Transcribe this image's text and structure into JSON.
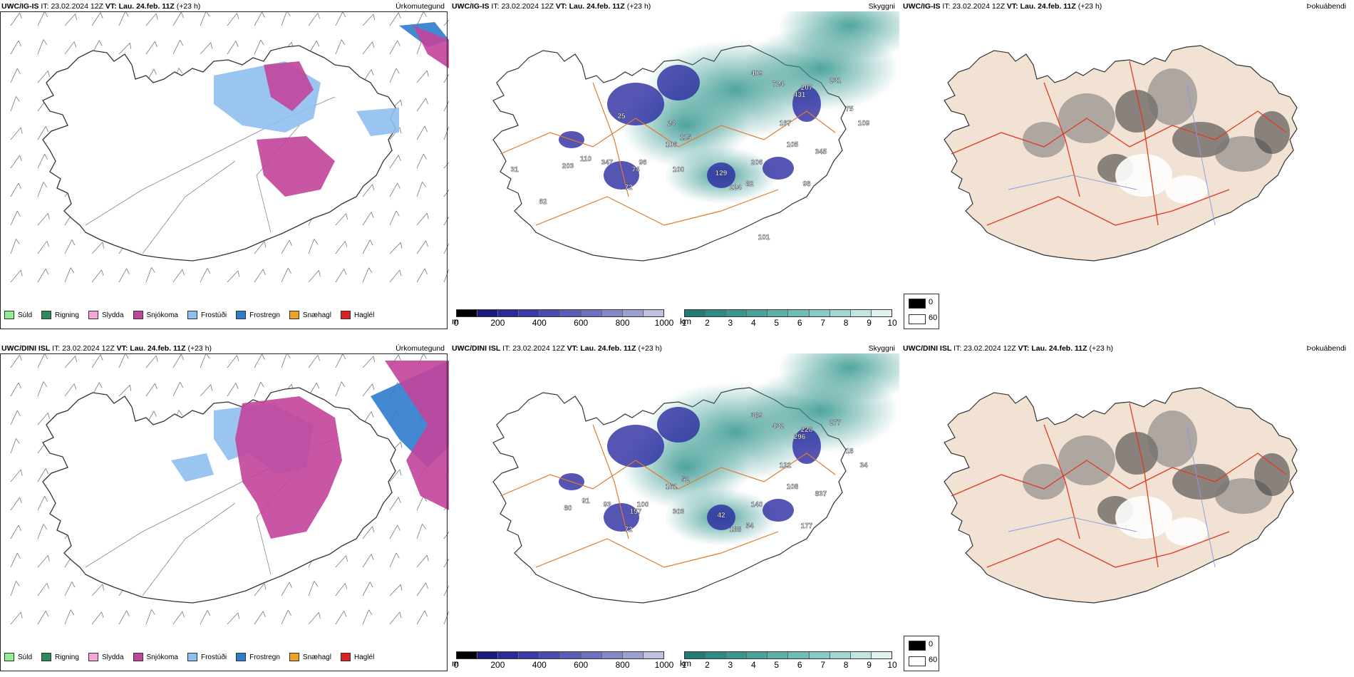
{
  "rows": [
    {
      "header": {
        "model": "UWC/IG-IS",
        "it_label": "IT:",
        "it_value": "23.02.2024 12Z",
        "vt_label": "VT:",
        "vt_value": "Lau. 24.feb. 11Z",
        "lead": "(+23 h)"
      },
      "ceiling_labels": [
        "409",
        "724",
        "207",
        "231",
        "431",
        "75",
        "109",
        "167",
        "345",
        "105",
        "206",
        "129",
        "82",
        "98",
        "224",
        "96",
        "74",
        "72",
        "347",
        "110",
        "203",
        "106",
        "100",
        "115",
        "62",
        "101",
        "25",
        "24",
        "31"
      ],
      "fog_note": ""
    },
    {
      "header": {
        "model": "UWC/DINI ISL",
        "it_label": "IT:",
        "it_value": "23.02.2024 12Z",
        "vt_label": "VT:",
        "vt_value": "Lau. 24.feb. 11Z",
        "lead": "(+23 h)"
      },
      "ceiling_labels": [
        "389",
        "432",
        "228",
        "277",
        "296",
        "18",
        "34",
        "121",
        "837",
        "108",
        "140",
        "42",
        "54",
        "177",
        "188",
        "100",
        "157",
        "72",
        "93",
        "91",
        "80",
        "161",
        "303",
        "52"
      ],
      "fog_note": ""
    }
  ],
  "panel_titles": {
    "precip": "Úrkomutegund",
    "ceiling": "Skyggni",
    "fog": "Þokuábendi"
  },
  "precip_legend": [
    {
      "label": "Súld",
      "color": "#90ee90"
    },
    {
      "label": "Rigning",
      "color": "#2e8b57"
    },
    {
      "label": "Slydda",
      "color": "#f4a7d6"
    },
    {
      "label": "Snjókoma",
      "color": "#c2449a"
    },
    {
      "label": "Frostúði",
      "color": "#8fbff0"
    },
    {
      "label": "Frostregn",
      "color": "#2f7ccc"
    },
    {
      "label": "Snæhagl",
      "color": "#f0a020"
    },
    {
      "label": "Haglél",
      "color": "#e02020"
    }
  ],
  "ceiling_bar": {
    "unit": "m",
    "ticks": [
      "0",
      "200",
      "400",
      "600",
      "800",
      "1000"
    ],
    "colors": [
      "#000000",
      "#1a1a80",
      "#2a2a9a",
      "#3a3aa8",
      "#4a4ab0",
      "#5c5cb8",
      "#7070c0",
      "#8888c8",
      "#a0a0d0",
      "#c0c0e0"
    ]
  },
  "vis_bar": {
    "unit": "km",
    "ticks": [
      "1",
      "2",
      "3",
      "4",
      "5",
      "6",
      "7",
      "8",
      "9",
      "10"
    ],
    "colors": [
      "#1f7c74",
      "#2d8a82",
      "#3b968e",
      "#4aa39b",
      "#5bb0a8",
      "#70bdb5",
      "#88c9c2",
      "#a3d6d0",
      "#c2e4df",
      "#e0f2ef"
    ]
  },
  "fog_legend": [
    {
      "label": "0",
      "color": "#000000"
    },
    {
      "label": "60",
      "color": "#ffffff"
    }
  ],
  "colors": {
    "coast": "#333333",
    "roads": "#e07b2a",
    "roads_red": "#e03a1e",
    "land_fog": "#f1e2d4",
    "snow": "#c2449a",
    "frost_drizzle": "#8fbff0",
    "frost_rain": "#2f7ccc",
    "vis_teal": "#3b9a92",
    "ceiling_blue": "#2a2aa0"
  }
}
